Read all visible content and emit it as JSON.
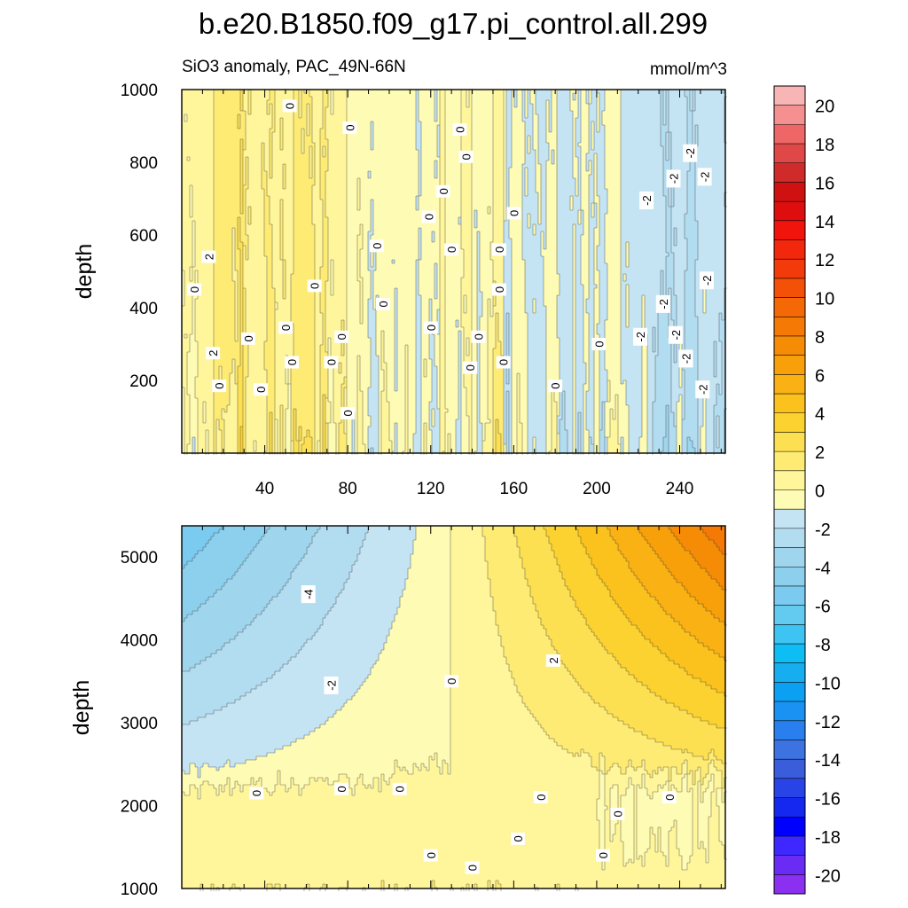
{
  "chart_data": {
    "type": "heatmap",
    "title": "b.e20.B1850.f09_g17.pi_control.all.299",
    "subtitle": "SiO3 anomaly, PAC_49N-66N",
    "units": "mmol/m^3",
    "colorbar": {
      "levels": [
        -21,
        -20,
        -19,
        -18,
        -17,
        -16,
        -15,
        -14,
        -13,
        -12,
        -11,
        -10,
        -9,
        -8,
        -7,
        -6,
        -5,
        -4,
        -3,
        -2,
        -1,
        0,
        1,
        2,
        3,
        4,
        5,
        6,
        7,
        8,
        9,
        10,
        11,
        12,
        13,
        14,
        15,
        16,
        17,
        18,
        19,
        20,
        21
      ],
      "colors": [
        "#8b2ff0",
        "#6a2cf5",
        "#3f28ff",
        "#0000ff",
        "#1428f0",
        "#2844e6",
        "#3a5ddb",
        "#3c73e0",
        "#2a7fef",
        "#1a92f3",
        "#0ba0f2",
        "#16aeef",
        "#0fbdf5",
        "#3ec4f3",
        "#64cbf0",
        "#7bcaef",
        "#8dd0ee",
        "#9fd6ee",
        "#b2dcf0",
        "#c4e4f3",
        "#fdfbb4",
        "#fff59a",
        "#fdeb74",
        "#fde052",
        "#fbd230",
        "#fbc21e",
        "#fab114",
        "#f8a00a",
        "#f68c05",
        "#f57a05",
        "#f46806",
        "#f35008",
        "#f23a0a",
        "#f2270c",
        "#f0140d",
        "#de0e0e",
        "#cf1111",
        "#d02b2b",
        "#e04848",
        "#ee6666",
        "#f49090",
        "#f7b5b5"
      ],
      "tick_values": [
        -20,
        -18,
        -16,
        -14,
        -12,
        -10,
        -8,
        -6,
        -4,
        -2,
        0,
        2,
        4,
        6,
        8,
        10,
        12,
        14,
        16,
        18,
        20
      ],
      "tick_labels": [
        "-20",
        "-18",
        "-16",
        "-14",
        "-12",
        "-10",
        "-8",
        "-6",
        "-4",
        "-2",
        "0",
        "2",
        "4",
        "6",
        "8",
        "10",
        "12",
        "14",
        "16",
        "18",
        "20"
      ]
    },
    "panels": [
      {
        "name": "upper",
        "ylabel": "depth",
        "xlim": [
          0,
          262
        ],
        "ylim": [
          1000,
          0
        ],
        "x_ticks": [
          40,
          80,
          120,
          160,
          200,
          240
        ],
        "x_tick_labels": [
          "40",
          "80",
          "120",
          "160",
          "200",
          "240"
        ],
        "y_ticks": [
          200,
          400,
          600,
          800,
          1000
        ],
        "y_tick_labels": [
          "200",
          "400",
          "600",
          "800",
          "1000"
        ],
        "contour_labels": [
          {
            "text": "0",
            "x": 80,
            "y": 110
          },
          {
            "text": "0",
            "x": 18,
            "y": 185
          },
          {
            "text": "0",
            "x": 38,
            "y": 175
          },
          {
            "text": "0",
            "x": 53,
            "y": 250
          },
          {
            "text": "0",
            "x": 72,
            "y": 250
          },
          {
            "text": "2",
            "x": 15,
            "y": 275
          },
          {
            "text": "0",
            "x": 32,
            "y": 315
          },
          {
            "text": "0",
            "x": 50,
            "y": 345
          },
          {
            "text": "0",
            "x": 77,
            "y": 320
          },
          {
            "text": "0",
            "x": 6,
            "y": 450
          },
          {
            "text": "2",
            "x": 13,
            "y": 540
          },
          {
            "text": "0",
            "x": 64,
            "y": 460
          },
          {
            "text": "0",
            "x": 97,
            "y": 410
          },
          {
            "text": "0",
            "x": 94,
            "y": 570
          },
          {
            "text": "0",
            "x": 120,
            "y": 345
          },
          {
            "text": "0",
            "x": 139,
            "y": 235
          },
          {
            "text": "0",
            "x": 143,
            "y": 320
          },
          {
            "text": "0",
            "x": 153,
            "y": 450
          },
          {
            "text": "0",
            "x": 153,
            "y": 560
          },
          {
            "text": "0",
            "x": 155,
            "y": 250
          },
          {
            "text": "0",
            "x": 130,
            "y": 560
          },
          {
            "text": "0",
            "x": 119,
            "y": 650
          },
          {
            "text": "0",
            "x": 126,
            "y": 720
          },
          {
            "text": "0",
            "x": 137,
            "y": 815
          },
          {
            "text": "0",
            "x": 134,
            "y": 890
          },
          {
            "text": "0",
            "x": 81,
            "y": 895
          },
          {
            "text": "0",
            "x": 52,
            "y": 955
          },
          {
            "text": "0",
            "x": 160,
            "y": 660
          },
          {
            "text": "0",
            "x": 180,
            "y": 185
          },
          {
            "text": "0",
            "x": 201,
            "y": 300
          },
          {
            "text": "-2",
            "x": 221,
            "y": 320
          },
          {
            "text": "-2",
            "x": 238,
            "y": 325
          },
          {
            "text": "-2",
            "x": 232,
            "y": 410
          },
          {
            "text": "-2",
            "x": 243,
            "y": 260
          },
          {
            "text": "-2",
            "x": 251,
            "y": 175
          },
          {
            "text": "-2",
            "x": 253,
            "y": 475
          },
          {
            "text": "-2",
            "x": 224,
            "y": 695
          },
          {
            "text": "-2",
            "x": 237,
            "y": 755
          },
          {
            "text": "-2",
            "x": 252,
            "y": 760
          },
          {
            "text": "-2",
            "x": 245,
            "y": 825
          }
        ]
      },
      {
        "name": "lower",
        "ylabel": "depth",
        "xlim": [
          0,
          262
        ],
        "ylim": [
          5375,
          1000
        ],
        "y_ticks": [
          1000,
          2000,
          3000,
          4000,
          5000
        ],
        "y_tick_labels": [
          "1000",
          "2000",
          "3000",
          "4000",
          "5000"
        ],
        "contour_labels": [
          {
            "text": "0",
            "x": 120,
            "y": 1400
          },
          {
            "text": "0",
            "x": 140,
            "y": 1250
          },
          {
            "text": "0",
            "x": 203,
            "y": 1400
          },
          {
            "text": "0",
            "x": 162,
            "y": 1600
          },
          {
            "text": "0",
            "x": 210,
            "y": 1900
          },
          {
            "text": "0",
            "x": 235,
            "y": 2100
          },
          {
            "text": "0",
            "x": 173,
            "y": 2100
          },
          {
            "text": "0",
            "x": 36,
            "y": 2150
          },
          {
            "text": "0",
            "x": 77,
            "y": 2200
          },
          {
            "text": "0",
            "x": 105,
            "y": 2200
          },
          {
            "text": "-2",
            "x": 72,
            "y": 3450
          },
          {
            "text": "0",
            "x": 130,
            "y": 3500
          },
          {
            "text": "2",
            "x": 179,
            "y": 3750
          },
          {
            "text": "-4",
            "x": 61,
            "y": 4550
          }
        ]
      }
    ]
  }
}
